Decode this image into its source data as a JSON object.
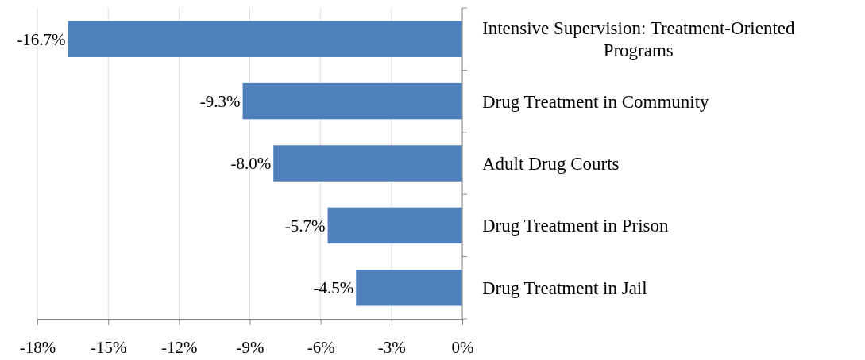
{
  "chart_data": {
    "type": "bar",
    "orientation": "horizontal",
    "categories": [
      "Intensive Supervision: Treatment-Oriented Programs",
      "Drug Treatment in Community",
      "Adult Drug Courts",
      "Drug Treatment in Prison",
      "Drug Treatment in Jail"
    ],
    "values": [
      -16.7,
      -9.3,
      -8.0,
      -5.7,
      -4.5
    ],
    "value_labels": [
      "-16.7%",
      "-9.3%",
      "-8.0%",
      "-5.7%",
      "-4.5%"
    ],
    "color": "#4f81bd",
    "xlim": [
      -18,
      0
    ],
    "xticks": [
      {
        "value": -18,
        "label": "-18%"
      },
      {
        "value": -15,
        "label": "-15%"
      },
      {
        "value": -12,
        "label": "-12%"
      },
      {
        "value": -9,
        "label": "-9%"
      },
      {
        "value": -6,
        "label": "-6%"
      },
      {
        "value": -3,
        "label": "-3%"
      },
      {
        "value": 0,
        "label": "0%"
      }
    ],
    "grid": "x"
  }
}
